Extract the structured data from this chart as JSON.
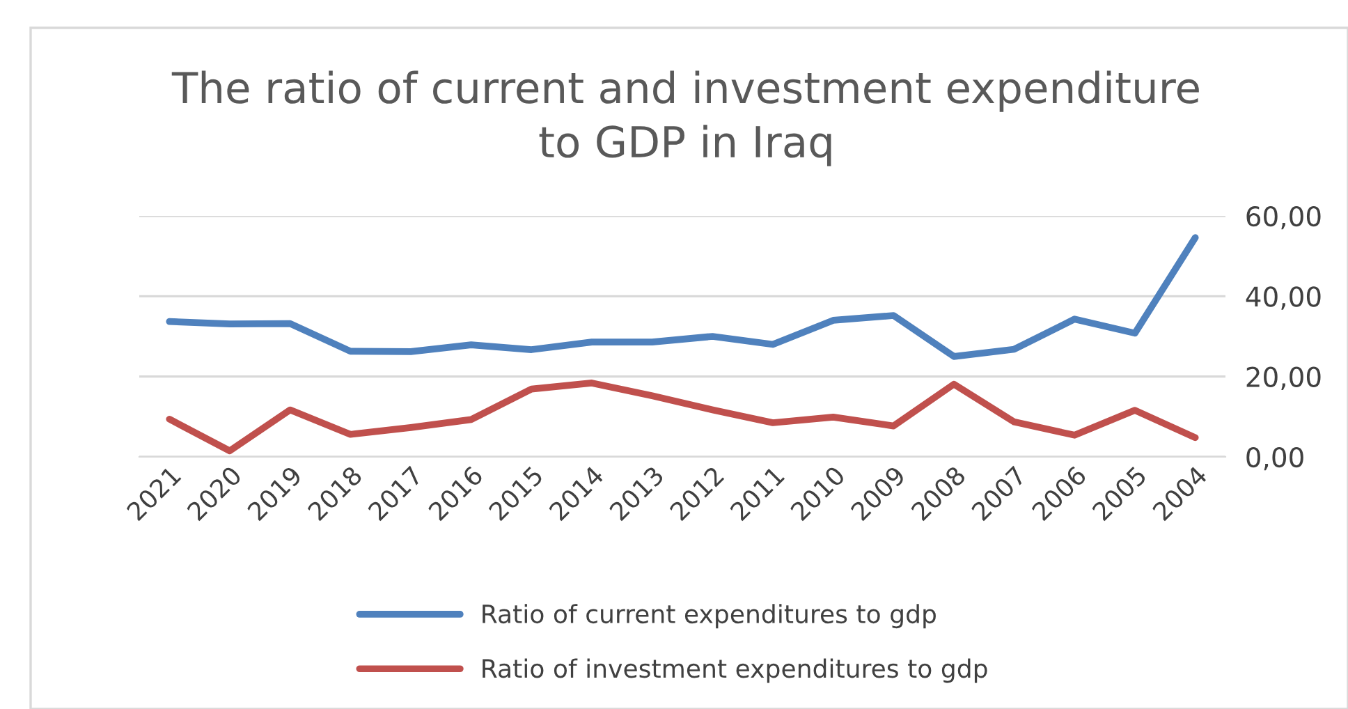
{
  "chart_data": {
    "type": "line",
    "title": "The ratio of current and investment expenditure\nto GDP in Iraq",
    "categories": [
      "2021",
      "2020",
      "2019",
      "2018",
      "2017",
      "2016",
      "2015",
      "2014",
      "2013",
      "2012",
      "2011",
      "2010",
      "2009",
      "2008",
      "2007",
      "2006",
      "2005",
      "2004"
    ],
    "series": [
      {
        "name": "Ratio of current expenditures to gdp",
        "color": "#4f81bd",
        "values": [
          33.7,
          33.1,
          33.2,
          26.3,
          26.2,
          27.9,
          26.7,
          28.6,
          28.6,
          30.0,
          28.0,
          34.0,
          35.2,
          25.0,
          26.8,
          34.3,
          30.8,
          54.6
        ]
      },
      {
        "name": "Ratio of investment expenditures to gdp",
        "color": "#c0504d",
        "values": [
          9.4,
          1.5,
          11.7,
          5.6,
          7.3,
          9.3,
          16.9,
          18.4,
          15.2,
          11.7,
          8.5,
          9.9,
          7.7,
          18.1,
          8.7,
          5.4,
          11.6,
          4.8
        ]
      }
    ],
    "ylim": [
      0,
      60
    ],
    "yticks": [
      {
        "value": 0,
        "label": "0,00"
      },
      {
        "value": 20,
        "label": "20,00"
      },
      {
        "value": 40,
        "label": "40,00"
      },
      {
        "value": 60,
        "label": "60,00"
      }
    ],
    "grid": "y",
    "legend": "bottom",
    "marker": "none",
    "line_style": "solid"
  }
}
